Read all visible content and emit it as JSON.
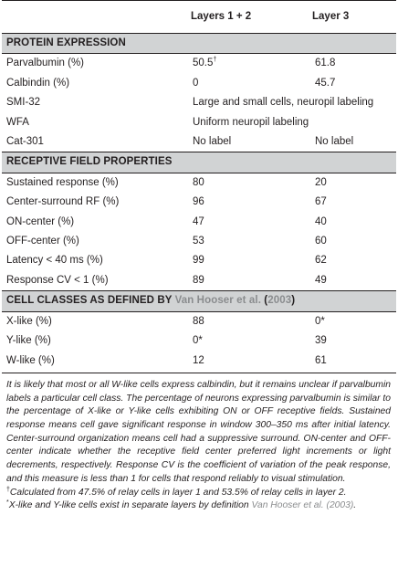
{
  "table": {
    "columns": [
      "",
      "Layers 1 + 2",
      "Layer 3"
    ],
    "sections": [
      {
        "title": "PROTEIN EXPRESSION",
        "rows": [
          {
            "label": "Parvalbumin (%)",
            "v1": "50.5",
            "v1_mark": "†",
            "v2": "61.8"
          },
          {
            "label": "Calbindin (%)",
            "v1": "0",
            "v2": "45.7"
          },
          {
            "label": "SMI-32",
            "span": "Large and small cells, neuropil labeling"
          },
          {
            "label": "WFA",
            "span": "Uniform neuropil labeling"
          },
          {
            "label": "Cat-301",
            "v1": "No label",
            "v2": "No label"
          }
        ]
      },
      {
        "title": "RECEPTIVE FIELD PROPERTIES",
        "rows": [
          {
            "label": "Sustained response (%)",
            "v1": "80",
            "v2": "20"
          },
          {
            "label": "Center-surround RF (%)",
            "v1": "96",
            "v2": "67"
          },
          {
            "label": "ON-center (%)",
            "v1": "47",
            "v2": "40"
          },
          {
            "label": "OFF-center (%)",
            "v1": "53",
            "v2": "60"
          },
          {
            "label": "Latency < 40 ms (%)",
            "v1": "99",
            "v2": "62"
          },
          {
            "label": "Response CV < 1 (%)",
            "v1": "89",
            "v2": "49"
          }
        ]
      },
      {
        "title": "CELL CLASSES AS DEFINED BY",
        "title_ref": "Van Hooser et al.",
        "title_paren_open": " (",
        "title_year": "2003",
        "title_paren_close": ")",
        "rows": [
          {
            "label": "X-like (%)",
            "v1": "88",
            "v2": "0*"
          },
          {
            "label": "Y-like (%)",
            "v1": "0*",
            "v2": "39"
          },
          {
            "label": "W-like (%)",
            "v1": "12",
            "v2": "61"
          }
        ]
      }
    ]
  },
  "notes": {
    "main": "It is likely that most or all W-like cells express calbindin, but it remains unclear if parvalbumin labels a particular cell class. The percentage of neurons expressing parvalbumin is similar to the percentage of X-like or Y-like cells exhibiting ON or OFF receptive fields. Sustained response means cell gave significant response in window 300–350 ms after initial latency. Center-surround organization means cell had a suppressive surround. ON-center and OFF-center indicate whether the receptive field center preferred light increments or light decrements, respectively. Response CV is the coefficient of variation of the peak response, and this measure is less than 1 for cells that respond reliably to visual stimulation.",
    "dagger_symbol": "†",
    "dagger_text": "Calculated from 47.5% of relay cells in layer 1 and 53.5% of relay cells in layer 2.",
    "star_symbol": "*",
    "star_text": "X-like and Y-like cells exist in separate layers by definition ",
    "star_ref": "Van Hooser et al. (2003)",
    "star_end": "."
  }
}
